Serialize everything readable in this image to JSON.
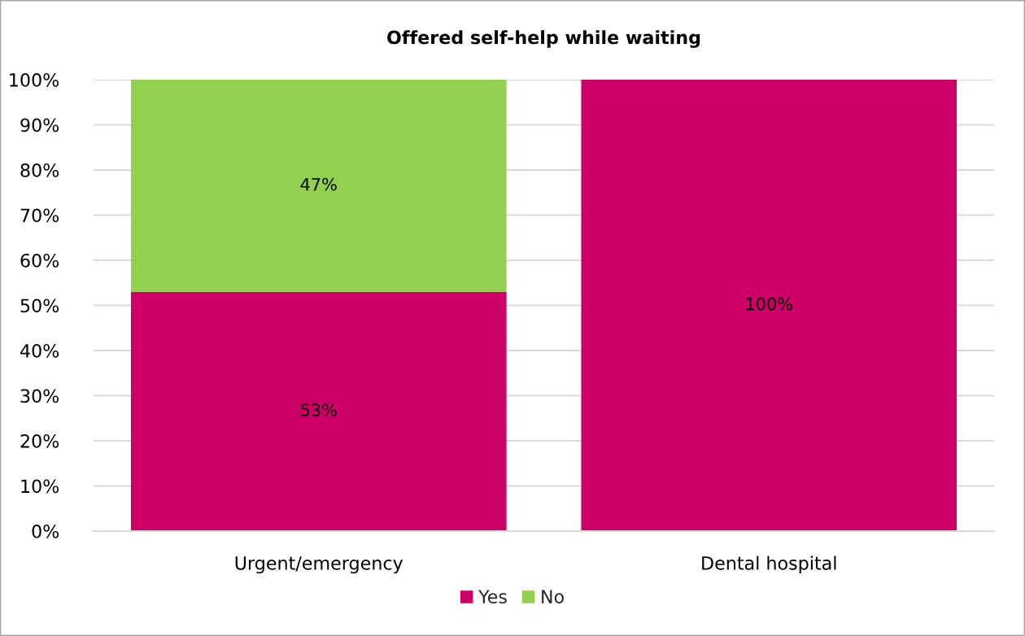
{
  "chart_data": {
    "type": "bar",
    "title": "Offered self-help while waiting",
    "categories": [
      "Urgent/emergency",
      "Dental hospital"
    ],
    "series": [
      {
        "name": "Yes",
        "color": "#cc0066",
        "values": [
          53,
          100
        ],
        "value_labels": [
          "53%",
          "100%"
        ]
      },
      {
        "name": "No",
        "color": "#92d050",
        "values": [
          47,
          0
        ],
        "value_labels": [
          "47%",
          null
        ]
      }
    ],
    "stacked": true,
    "ylim": [
      0,
      100
    ],
    "yticks": [
      {
        "value": 0,
        "label": "0%"
      },
      {
        "value": 10,
        "label": "10%"
      },
      {
        "value": 20,
        "label": "20%"
      },
      {
        "value": 30,
        "label": "30%"
      },
      {
        "value": 40,
        "label": "40%"
      },
      {
        "value": 50,
        "label": "50%"
      },
      {
        "value": 60,
        "label": "60%"
      },
      {
        "value": 70,
        "label": "70%"
      },
      {
        "value": 80,
        "label": "80%"
      },
      {
        "value": 90,
        "label": "90%"
      },
      {
        "value": 100,
        "label": "100%"
      }
    ],
    "grid": "y",
    "legend": "bottom"
  }
}
